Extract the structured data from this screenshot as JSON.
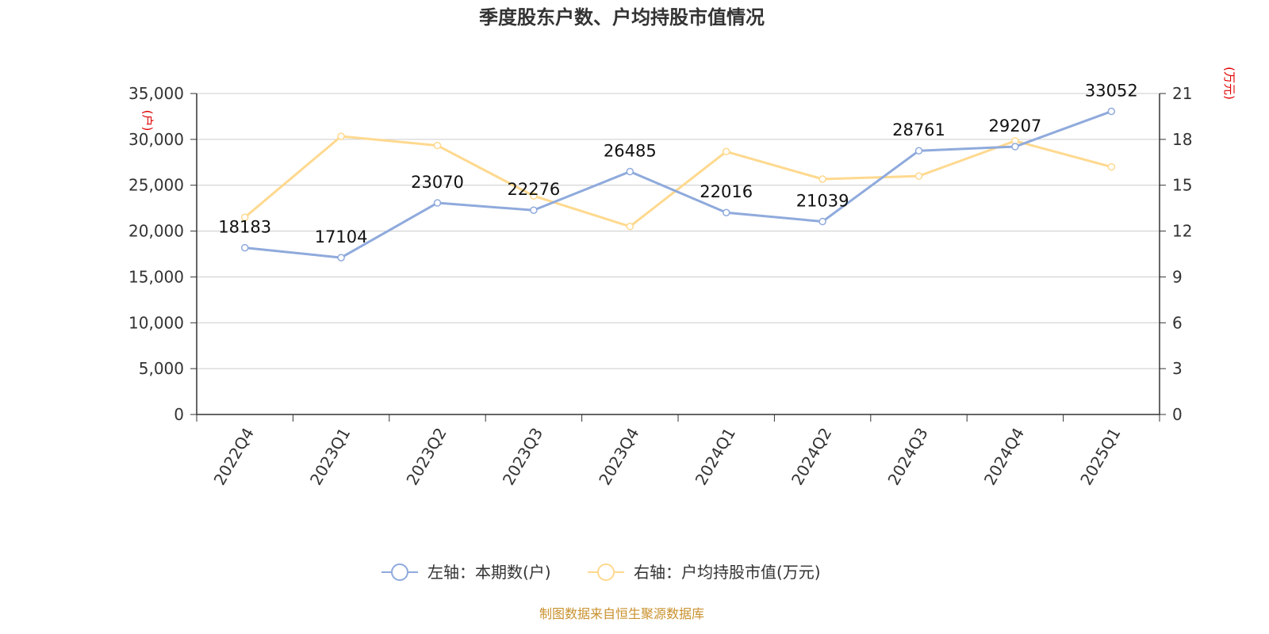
{
  "chart_data": {
    "type": "line",
    "title": "季度股东户数、户均持股市值情况",
    "categories": [
      "2022Q4",
      "2023Q1",
      "2023Q2",
      "2023Q3",
      "2023Q4",
      "2024Q1",
      "2024Q2",
      "2024Q3",
      "2024Q4",
      "2025Q1"
    ],
    "left_axis": {
      "unit": "(户)",
      "ylim": [
        0,
        35000
      ],
      "ticks": [
        "0",
        "5,000",
        "10,000",
        "15,000",
        "20,000",
        "25,000",
        "30,000",
        "35,000"
      ]
    },
    "right_axis": {
      "unit": "(万元)",
      "ylim": [
        0,
        21
      ],
      "ticks": [
        "0",
        "3",
        "6",
        "9",
        "12",
        "15",
        "18",
        "21"
      ]
    },
    "series": [
      {
        "name": "左轴：本期数(户)",
        "axis": "left",
        "color": "#8faadc",
        "values": [
          18183,
          17104,
          23070,
          22276,
          26485,
          22016,
          21039,
          28761,
          29207,
          33052
        ],
        "labels": [
          "18183",
          "17104",
          "23070",
          "22276",
          "26485",
          "22016",
          "21039",
          "28761",
          "29207",
          "33052"
        ]
      },
      {
        "name": "右轴：户均持股市值(万元)",
        "axis": "right",
        "color": "#ffd98f",
        "values": [
          12.9,
          18.2,
          17.6,
          14.3,
          12.3,
          17.2,
          15.4,
          15.6,
          17.9,
          16.2
        ]
      }
    ],
    "grid": true,
    "legend_position": "bottom",
    "source": "制图数据来自恒生聚源数据库"
  }
}
